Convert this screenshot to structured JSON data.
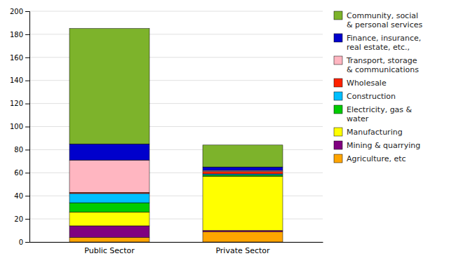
{
  "chart_data": {
    "type": "bar",
    "stacked": true,
    "categories": [
      "Public Sector",
      "Private Sector"
    ],
    "series": [
      {
        "name": "Agriculture, etc",
        "color": "#FFA500",
        "values": [
          4,
          9
        ]
      },
      {
        "name": "Mining & quarrying",
        "color": "#800080",
        "values": [
          10,
          1
        ]
      },
      {
        "name": "Manufacturing",
        "color": "#FFFF00",
        "values": [
          12,
          47
        ]
      },
      {
        "name": "Electricity, gas &\nwater",
        "color": "#00CC00",
        "values": [
          8,
          1
        ]
      },
      {
        "name": "Construction",
        "color": "#00BFFF",
        "values": [
          8,
          1
        ]
      },
      {
        "name": "Wholesale",
        "color": "#FF2200",
        "values": [
          1,
          2
        ]
      },
      {
        "name": "Transport, storage\n& communications",
        "color": "#FFB6C1",
        "values": [
          28,
          1
        ]
      },
      {
        "name": "Finance, insurance,\nreal estate, etc.,",
        "color": "#0000CC",
        "values": [
          14,
          3
        ]
      },
      {
        "name": "Community, social\n& personal services",
        "color": "#7DB32B",
        "values": [
          100,
          19
        ]
      }
    ],
    "ylim": [
      0,
      200
    ],
    "yticks": [
      0,
      20,
      40,
      60,
      80,
      100,
      120,
      140,
      160,
      180,
      200
    ],
    "grid": true,
    "legend": "right"
  }
}
